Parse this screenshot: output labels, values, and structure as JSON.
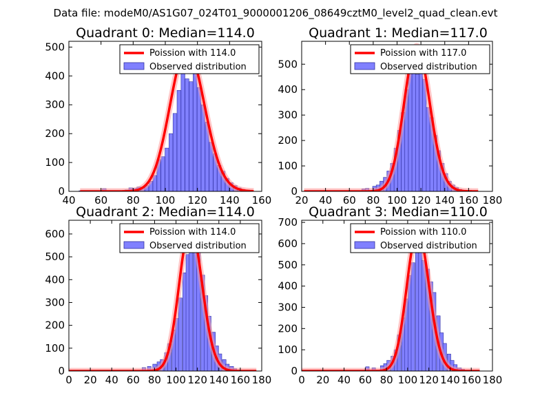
{
  "figure_title": "Data file: modeM0/AS1G07_024T01_9000001206_08649cztM0_level2_quad_clean.evt",
  "colors": {
    "bar_fill": "#8080ff",
    "bar_edge": "#3030a0",
    "curve": "#ff0000",
    "curve_glow": "#ff9999"
  },
  "chart_data": [
    {
      "type": "bar",
      "title": "Quadrant 0: Median=114.0",
      "xlim": [
        40,
        160
      ],
      "ylim": [
        0,
        520
      ],
      "xticks": [
        40,
        60,
        80,
        100,
        120,
        140,
        160
      ],
      "yticks": [
        0,
        100,
        200,
        300,
        400,
        500
      ],
      "legend": {
        "position": "top-right",
        "entries": [
          "Poission with 114.0",
          "Observed distribution"
        ]
      },
      "poisson_lambda": 114.0,
      "poisson_scale": 495,
      "curve_x_range": [
        47,
        155
      ],
      "bin_width": 2.4,
      "bins": [
        [
          47.5,
          2
        ],
        [
          62,
          10
        ],
        [
          76,
          5
        ],
        [
          78.5,
          12
        ],
        [
          81,
          10
        ],
        [
          83.5,
          15
        ],
        [
          86,
          15
        ],
        [
          88.5,
          20
        ],
        [
          91,
          35
        ],
        [
          93.5,
          55
        ],
        [
          96,
          110
        ],
        [
          98.5,
          120
        ],
        [
          101,
          150
        ],
        [
          103.5,
          200
        ],
        [
          106,
          270
        ],
        [
          108.5,
          350
        ],
        [
          111,
          460
        ],
        [
          113.5,
          390
        ],
        [
          116,
          380
        ],
        [
          118.5,
          480
        ],
        [
          121,
          360
        ],
        [
          123.5,
          300
        ],
        [
          126,
          240
        ],
        [
          128.5,
          170
        ],
        [
          131,
          130
        ],
        [
          133.5,
          90
        ],
        [
          136,
          70
        ],
        [
          138.5,
          45
        ],
        [
          141,
          30
        ],
        [
          143.5,
          20
        ],
        [
          146,
          12
        ],
        [
          148.5,
          7
        ],
        [
          151,
          3
        ]
      ]
    },
    {
      "type": "bar",
      "title": "Quadrant 1: Median=117.0",
      "xlim": [
        20,
        180
      ],
      "ylim": [
        0,
        590
      ],
      "xticks": [
        20,
        40,
        60,
        80,
        100,
        120,
        140,
        160,
        180
      ],
      "yticks": [
        0,
        100,
        200,
        300,
        400,
        500
      ],
      "legend": {
        "position": "top-right",
        "entries": [
          "Poission with 117.0",
          "Observed distribution"
        ]
      },
      "poisson_lambda": 117.0,
      "poisson_scale": 570,
      "curve_x_range": [
        22,
        168
      ],
      "bin_width": 3.0,
      "bins": [
        [
          72,
          10
        ],
        [
          75,
          12
        ],
        [
          81,
          20
        ],
        [
          84,
          25
        ],
        [
          87,
          40
        ],
        [
          90,
          55
        ],
        [
          93,
          80
        ],
        [
          96,
          110
        ],
        [
          99,
          170
        ],
        [
          102,
          240
        ],
        [
          105,
          310
        ],
        [
          108,
          400
        ],
        [
          111,
          500
        ],
        [
          114,
          560
        ],
        [
          117,
          460
        ],
        [
          120,
          530
        ],
        [
          123,
          440
        ],
        [
          126,
          330
        ],
        [
          129,
          290
        ],
        [
          132,
          220
        ],
        [
          135,
          160
        ],
        [
          138,
          110
        ],
        [
          141,
          70
        ],
        [
          144,
          40
        ],
        [
          147,
          25
        ],
        [
          150,
          15
        ],
        [
          153,
          8
        ]
      ]
    },
    {
      "type": "bar",
      "title": "Quadrant 2: Median=114.0",
      "xlim": [
        0,
        180
      ],
      "ylim": [
        0,
        660
      ],
      "xticks": [
        0,
        20,
        40,
        60,
        80,
        100,
        120,
        140,
        160,
        180
      ],
      "yticks": [
        0,
        100,
        200,
        300,
        400,
        500,
        600
      ],
      "legend": {
        "position": "top-right",
        "entries": [
          "Poission with 114.0",
          "Observed distribution"
        ]
      },
      "poisson_lambda": 114.0,
      "poisson_scale": 630,
      "curve_x_range": [
        0,
        175
      ],
      "bin_width": 3.4,
      "bins": [
        [
          70,
          15
        ],
        [
          75,
          20
        ],
        [
          80,
          30
        ],
        [
          84,
          40
        ],
        [
          87,
          50
        ],
        [
          91,
          80
        ],
        [
          94,
          120
        ],
        [
          98,
          180
        ],
        [
          101,
          230
        ],
        [
          104,
          320
        ],
        [
          108,
          430
        ],
        [
          111,
          510
        ],
        [
          114,
          600
        ],
        [
          118,
          590
        ],
        [
          121,
          520
        ],
        [
          125,
          420
        ],
        [
          128,
          330
        ],
        [
          131,
          240
        ],
        [
          135,
          170
        ],
        [
          138,
          110
        ],
        [
          141,
          75
        ],
        [
          145,
          50
        ],
        [
          148,
          30
        ],
        [
          152,
          20
        ],
        [
          155,
          10
        ]
      ]
    },
    {
      "type": "bar",
      "title": "Quadrant 3: Median=110.0",
      "xlim": [
        0,
        180
      ],
      "ylim": [
        0,
        710
      ],
      "xticks": [
        0,
        20,
        40,
        60,
        80,
        100,
        120,
        140,
        160,
        180
      ],
      "yticks": [
        0,
        100,
        200,
        300,
        400,
        500,
        600,
        700
      ],
      "legend": {
        "position": "top-right",
        "entries": [
          "Poission with 110.0",
          "Observed distribution"
        ]
      },
      "poisson_lambda": 110.0,
      "poisson_scale": 660,
      "curve_x_range": [
        0,
        168
      ],
      "bin_width": 3.4,
      "bins": [
        [
          62,
          20
        ],
        [
          68,
          15
        ],
        [
          76,
          25
        ],
        [
          79,
          35
        ],
        [
          82,
          50
        ],
        [
          86,
          70
        ],
        [
          89,
          100
        ],
        [
          92,
          170
        ],
        [
          96,
          250
        ],
        [
          99,
          340
        ],
        [
          102,
          450
        ],
        [
          105,
          510
        ],
        [
          109,
          560
        ],
        [
          112,
          660
        ],
        [
          115,
          520
        ],
        [
          119,
          480
        ],
        [
          122,
          420
        ],
        [
          125,
          370
        ],
        [
          129,
          260
        ],
        [
          132,
          180
        ],
        [
          135,
          130
        ],
        [
          139,
          80
        ],
        [
          142,
          50
        ],
        [
          145,
          30
        ],
        [
          149,
          15
        ],
        [
          152,
          8
        ]
      ]
    }
  ]
}
